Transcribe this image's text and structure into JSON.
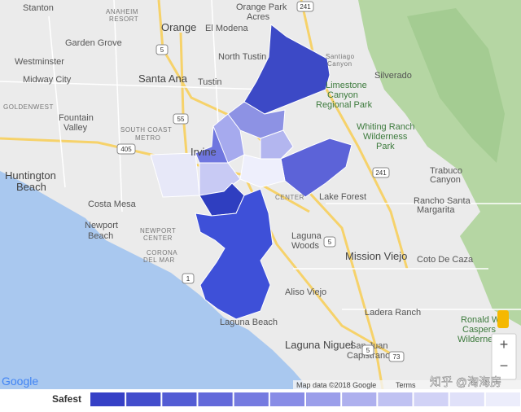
{
  "places": [
    [
      "Stanton"
    ],
    [
      "ANAHEIM",
      "RESORT"
    ],
    [
      "Garden Grove"
    ],
    [
      "Orange"
    ],
    [
      "El Modena"
    ],
    [
      "Orange Park",
      "Acres"
    ],
    [
      "Westminster"
    ],
    [
      "Midway City"
    ],
    [
      "Santa Ana"
    ],
    [
      "Tustin"
    ],
    [
      "North Tustin"
    ],
    [
      "Santiago",
      "Canyon"
    ],
    [
      "Silverado"
    ],
    [
      "Limestone",
      "Canyon",
      "Regional Park"
    ],
    [
      "GOLDENWEST"
    ],
    [
      "Fountain",
      "Valley"
    ],
    [
      "SOUTH COAST",
      "METRO"
    ],
    [
      "Whiting Ranch",
      "Wilderness",
      "Park"
    ],
    [
      "Huntington",
      "Beach"
    ],
    [
      "Irvine"
    ],
    [
      "Trabuco",
      "Canyon"
    ],
    [
      "Costa Mesa"
    ],
    [
      "CENTER"
    ],
    [
      "Lake Forest"
    ],
    [
      "Rancho Santa",
      "Margarita"
    ],
    [
      "Newport",
      "Beach"
    ],
    [
      "NEWPORT",
      "CENTER"
    ],
    [
      "CORONA",
      "DEL MAR"
    ],
    [
      "Laguna",
      "Woods"
    ],
    [
      "Mission Viejo"
    ],
    [
      "Coto De Caza"
    ],
    [
      "Aliso Viejo"
    ],
    [
      "Ladera Ranch"
    ],
    [
      "Ronald W.",
      "Caspers",
      "Wilderness"
    ],
    [
      "Laguna Beach"
    ],
    [
      "Laguna Niguel"
    ],
    [
      "San Juan",
      "Capistrano"
    ]
  ],
  "highways": [
    "241",
    "5",
    "55",
    "405",
    "241",
    "5",
    "1",
    "73",
    "5"
  ],
  "footer": {
    "google": "Google",
    "map_data": "Map data ©2018 Google",
    "terms": "Terms",
    "watermark": "知乎 @淘海房"
  },
  "zoom": {
    "in": "+",
    "out": "−"
  },
  "legend": {
    "label": "Safest",
    "colors": [
      "#3640c6",
      "#434dcc",
      "#535cd4",
      "#6369da",
      "#757ae0",
      "#888ce6",
      "#9b9eea",
      "#aeb0ee",
      "#c0c2f2",
      "#d1d2f6",
      "#e0e1f9",
      "#ecedfb"
    ]
  }
}
